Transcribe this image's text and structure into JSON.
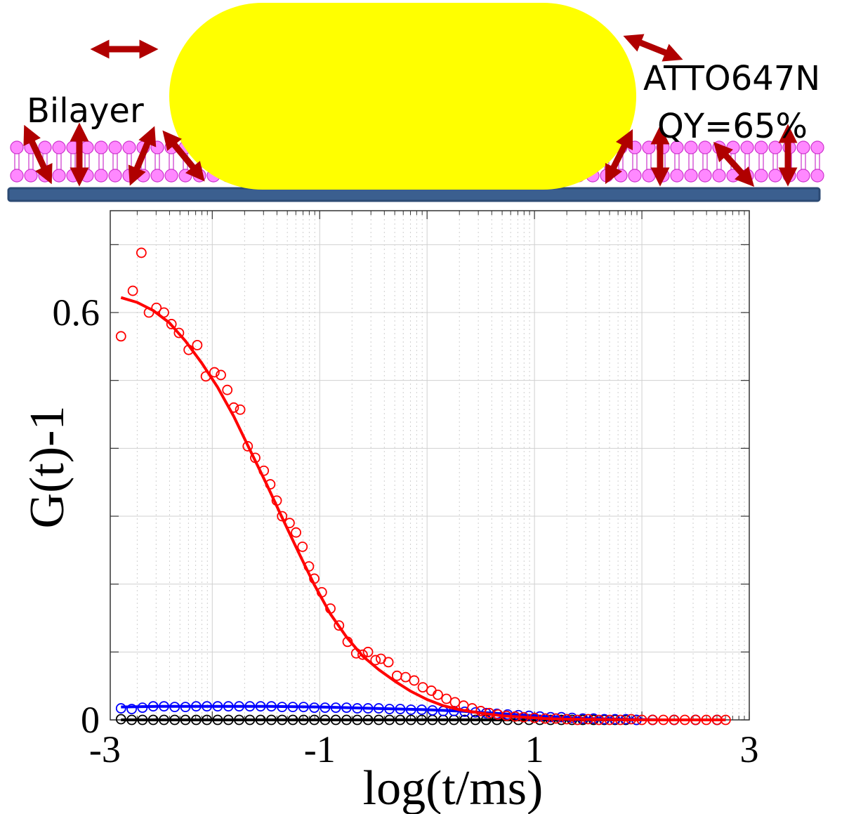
{
  "schematic": {
    "label_bilayer": "Bilayer",
    "label_dye": "ATTO647N",
    "label_qy": "QY=65%",
    "colors": {
      "particle": "#ffff00",
      "lipid_head": "#ff88ff",
      "lipid_edge": "#cc33cc",
      "substrate": "#3b5f8f",
      "dipole_arrow": "#b00000"
    }
  },
  "chart_data": {
    "type": "scatter",
    "title": "",
    "xlabel": "log(t/ms)",
    "ylabel": "G(t)-1",
    "xlim": [
      -2.95,
      3.0
    ],
    "ylim": [
      0.0,
      0.75
    ],
    "xticks": [
      -3,
      -1,
      1,
      3
    ],
    "xtick_labels": [
      "-3",
      "-1",
      "1",
      "3"
    ],
    "yticks": [
      0,
      0.6
    ],
    "ytick_labels": [
      "0",
      "0.6"
    ],
    "grid": true,
    "minor_grid": true,
    "series": [
      {
        "color": "#ff0000",
        "marker": "open-circle",
        "x": [
          -2.85,
          -2.74,
          -2.66,
          -2.59,
          -2.52,
          -2.45,
          -2.38,
          -2.31,
          -2.22,
          -2.14,
          -2.06,
          -1.98,
          -1.92,
          -1.86,
          -1.8,
          -1.74,
          -1.67,
          -1.6,
          -1.52,
          -1.46,
          -1.4,
          -1.35,
          -1.28,
          -1.22,
          -1.16,
          -1.1,
          -1.05,
          -0.98,
          -0.9,
          -0.82,
          -0.74,
          -0.66,
          -0.6,
          -0.55,
          -0.48,
          -0.43,
          -0.36,
          -0.28,
          -0.2,
          -0.12,
          -0.04,
          0.04,
          0.1,
          0.18,
          0.26,
          0.34,
          0.42,
          0.5,
          0.58,
          0.66,
          0.74,
          0.82,
          0.9,
          1.0,
          1.1,
          1.2,
          1.3,
          1.4,
          1.5,
          1.6,
          1.7,
          1.8,
          1.9,
          2.0,
          2.1,
          2.2,
          2.3,
          2.4,
          2.5,
          2.6,
          2.7,
          2.78
        ],
        "y": [
          0.565,
          0.632,
          0.688,
          0.6,
          0.607,
          0.6,
          0.583,
          0.57,
          0.545,
          0.552,
          0.506,
          0.512,
          0.508,
          0.486,
          0.46,
          0.457,
          0.403,
          0.386,
          0.367,
          0.347,
          0.323,
          0.3,
          0.29,
          0.276,
          0.255,
          0.226,
          0.208,
          0.188,
          0.164,
          0.139,
          0.115,
          0.098,
          0.096,
          0.1,
          0.088,
          0.09,
          0.085,
          0.065,
          0.063,
          0.058,
          0.048,
          0.043,
          0.037,
          0.031,
          0.026,
          0.021,
          0.017,
          0.013,
          0.01,
          0.008,
          0.006,
          0.005,
          0.004,
          0.003,
          0.002,
          0.002,
          0.001,
          0.0,
          0.001,
          0.0,
          0.0,
          0.0,
          0.001,
          0.0,
          0.0,
          0.0,
          0.0,
          0.0,
          0.0,
          0.0,
          0.0,
          0.0
        ]
      },
      {
        "color": "#ff0000",
        "marker": "none",
        "line": "fit",
        "x": [
          -2.85,
          -2.7,
          -2.55,
          -2.4,
          -2.25,
          -2.1,
          -1.95,
          -1.8,
          -1.65,
          -1.5,
          -1.35,
          -1.2,
          -1.05,
          -0.9,
          -0.75,
          -0.6,
          -0.45,
          -0.3,
          -0.15,
          0.0,
          0.15,
          0.3,
          0.5,
          0.7,
          0.9,
          1.1,
          1.3,
          1.6,
          2.0,
          2.4,
          2.78
        ],
        "y": [
          0.622,
          0.615,
          0.603,
          0.585,
          0.558,
          0.526,
          0.49,
          0.447,
          0.398,
          0.349,
          0.298,
          0.248,
          0.199,
          0.156,
          0.122,
          0.094,
          0.074,
          0.057,
          0.042,
          0.03,
          0.021,
          0.015,
          0.01,
          0.006,
          0.004,
          0.002,
          0.001,
          0.0005,
          0.0,
          0.0,
          0.0
        ]
      },
      {
        "color": "#0000ff",
        "marker": "open-circle",
        "x": [
          -2.85,
          -2.75,
          -2.65,
          -2.55,
          -2.45,
          -2.35,
          -2.25,
          -2.15,
          -2.05,
          -1.95,
          -1.85,
          -1.75,
          -1.65,
          -1.55,
          -1.45,
          -1.35,
          -1.25,
          -1.15,
          -1.05,
          -0.95,
          -0.85,
          -0.75,
          -0.65,
          -0.55,
          -0.45,
          -0.35,
          -0.25,
          -0.15,
          -0.05,
          0.05,
          0.15,
          0.25,
          0.35,
          0.45,
          0.55,
          0.65,
          0.75,
          0.85,
          0.95,
          1.05,
          1.15,
          1.25,
          1.35,
          1.45,
          1.55,
          1.65,
          1.75,
          1.85,
          1.95,
          2.1,
          2.3,
          2.5,
          2.7
        ],
        "y": [
          0.017,
          0.016,
          0.018,
          0.02,
          0.02,
          0.019,
          0.019,
          0.02,
          0.02,
          0.02,
          0.02,
          0.02,
          0.02,
          0.02,
          0.02,
          0.019,
          0.019,
          0.019,
          0.018,
          0.018,
          0.018,
          0.018,
          0.017,
          0.017,
          0.017,
          0.016,
          0.016,
          0.015,
          0.015,
          0.014,
          0.013,
          0.013,
          0.012,
          0.011,
          0.01,
          0.009,
          0.008,
          0.007,
          0.006,
          0.005,
          0.004,
          0.004,
          0.003,
          0.002,
          0.002,
          0.001,
          0.001,
          0.001,
          0.0,
          0.0,
          0.0,
          0.0,
          0.0
        ]
      },
      {
        "color": "#0000ff",
        "marker": "none",
        "line": "fit",
        "x": [
          -2.85,
          -2.5,
          -2.0,
          -1.5,
          -1.0,
          -0.5,
          0.0,
          0.3,
          0.6,
          0.9,
          1.2,
          1.5,
          1.8,
          2.2,
          2.78
        ],
        "y": [
          0.019,
          0.02,
          0.02,
          0.02,
          0.019,
          0.017,
          0.015,
          0.013,
          0.01,
          0.007,
          0.004,
          0.002,
          0.001,
          0.0,
          0.0
        ]
      },
      {
        "color": "#000000",
        "marker": "open-circle",
        "x": [
          -2.85,
          -2.75,
          -2.65,
          -2.55,
          -2.45,
          -2.35,
          -2.25,
          -2.15,
          -2.05,
          -1.95,
          -1.85,
          -1.75,
          -1.65,
          -1.55,
          -1.45,
          -1.35,
          -1.25,
          -1.15,
          -1.05,
          -0.95,
          -0.85,
          -0.75,
          -0.65,
          -0.55,
          -0.45,
          -0.35,
          -0.25,
          -0.15,
          -0.05,
          0.05,
          0.15,
          0.25,
          0.35,
          0.45,
          0.55,
          0.65,
          0.75,
          0.85,
          0.95,
          1.05,
          1.15,
          1.25,
          1.35,
          1.45,
          1.55,
          1.65,
          1.75,
          1.85,
          1.95,
          2.1,
          2.3,
          2.5,
          2.7
        ],
        "y": [
          0.001,
          0.0,
          0.0,
          0.0,
          0.0,
          0.0,
          0.0,
          0.0,
          0.0,
          0.0,
          0.0,
          0.0,
          0.0,
          0.0,
          0.0,
          0.0,
          0.0,
          0.0,
          0.0,
          0.0,
          0.0,
          0.0,
          0.0,
          0.0,
          0.0,
          0.0,
          0.0,
          0.0,
          0.0,
          0.0,
          0.0,
          0.0,
          0.0,
          0.0,
          0.0,
          0.0,
          0.0,
          0.0,
          0.0,
          0.0,
          0.0,
          0.0,
          0.0,
          0.0,
          0.0,
          0.0,
          0.0,
          0.0,
          0.0,
          0.0,
          0.0,
          0.0,
          0.0
        ]
      },
      {
        "color": "#000000",
        "marker": "none",
        "line": "fit",
        "x": [
          -2.85,
          2.78
        ],
        "y": [
          0.0,
          0.0
        ]
      }
    ]
  }
}
